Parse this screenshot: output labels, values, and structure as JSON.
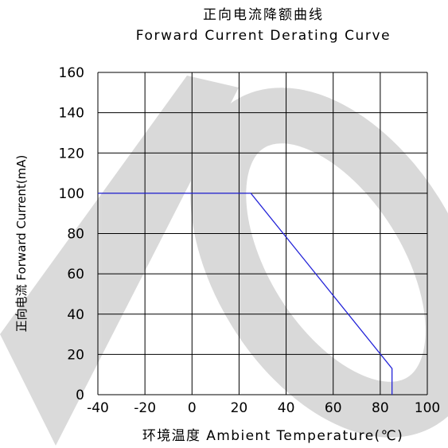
{
  "chart_data": {
    "type": "line",
    "title_cn": "正向电流降额曲线",
    "title_en": "Forward Current Derating Curve",
    "xlabel": "环境温度  Ambient Temperature(℃)",
    "ylabel": "正向电流 Forward Current(mA)",
    "xlim": [
      -40,
      100
    ],
    "ylim": [
      0,
      160
    ],
    "x_ticks": [
      "-40",
      "-20",
      "0",
      "20",
      "40",
      "60",
      "80",
      "100"
    ],
    "y_ticks": [
      "0",
      "20",
      "40",
      "60",
      "80",
      "100",
      "120",
      "140",
      "160"
    ],
    "grid": true,
    "series": [
      {
        "x": [
          -40,
          25,
          85,
          85
        ],
        "y": [
          100,
          100,
          13,
          0
        ],
        "color": "#2323d8"
      }
    ],
    "watermark_color": "#d9d9d9"
  }
}
